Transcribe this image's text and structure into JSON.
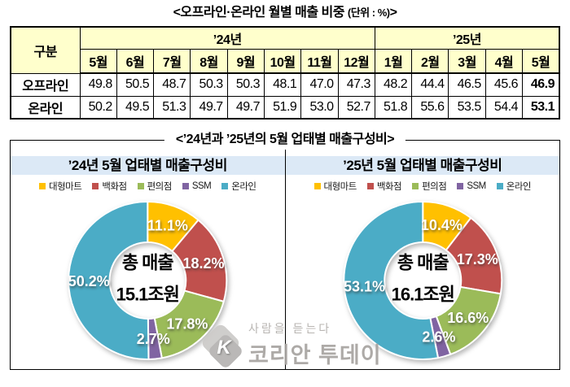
{
  "titles": {
    "table_section_prefix": "<오프라인·온라인 월별 매출 비중 ",
    "table_section_unit": "(단위 : %)",
    "table_section_suffix": ">",
    "donut_section": "<’24년과 ’25년의 5월 업태별 매출구성비>"
  },
  "series_colors": {
    "대형마트": "#FFC000",
    "백화점": "#C0504D",
    "편의점": "#9BBB59",
    "SSM": "#8064A2",
    "온라인": "#4BACC6"
  },
  "style": {
    "table_header_bg": "#FFFFCC",
    "panel_title_bg": "#DCE9F6"
  },
  "chart_data": [
    {
      "type": "table",
      "title": "오프라인·온라인 월별 매출 비중",
      "unit": "단위 : %",
      "corner_label": "구분",
      "column_groups": [
        {
          "label": "’24년",
          "span": 8
        },
        {
          "label": "’25년",
          "span": 5
        }
      ],
      "columns": [
        "5월",
        "6월",
        "7월",
        "8월",
        "9월",
        "10월",
        "11월",
        "12월",
        "1월",
        "2월",
        "3월",
        "4월",
        "5월"
      ],
      "rows": [
        {
          "name": "오프라인",
          "values": [
            49.8,
            50.5,
            48.7,
            50.3,
            50.3,
            48.1,
            47.0,
            47.3,
            48.2,
            44.4,
            46.5,
            45.6,
            46.9
          ]
        },
        {
          "name": "온라인",
          "values": [
            50.2,
            49.5,
            51.3,
            49.7,
            49.7,
            51.9,
            53.0,
            52.7,
            51.8,
            55.6,
            53.5,
            54.4,
            53.1
          ]
        }
      ],
      "last_column_bold": true
    },
    {
      "type": "pie",
      "donut": true,
      "title": "’24년 5월 업태별 매출구성비",
      "labels": [
        "대형마트",
        "백화점",
        "편의점",
        "SSM",
        "온라인"
      ],
      "values": [
        11.1,
        18.2,
        17.8,
        2.7,
        50.2
      ],
      "center_label": [
        "총 매출",
        "15.1조원"
      ],
      "start_angle_deg": 0,
      "direction": "clockwise",
      "legend_position": "top"
    },
    {
      "type": "pie",
      "donut": true,
      "title": "’25년 5월 업태별 매출구성비",
      "labels": [
        "대형마트",
        "백화점",
        "편의점",
        "SSM",
        "온라인"
      ],
      "values": [
        10.4,
        17.3,
        16.6,
        2.6,
        53.1
      ],
      "center_label": [
        "총 매출",
        "16.1조원"
      ],
      "start_angle_deg": 0,
      "direction": "clockwise",
      "legend_position": "top"
    }
  ],
  "watermark": {
    "logo_letter": "K",
    "tagline": "사람을 듣는다",
    "brand": "코리안 투데이"
  }
}
